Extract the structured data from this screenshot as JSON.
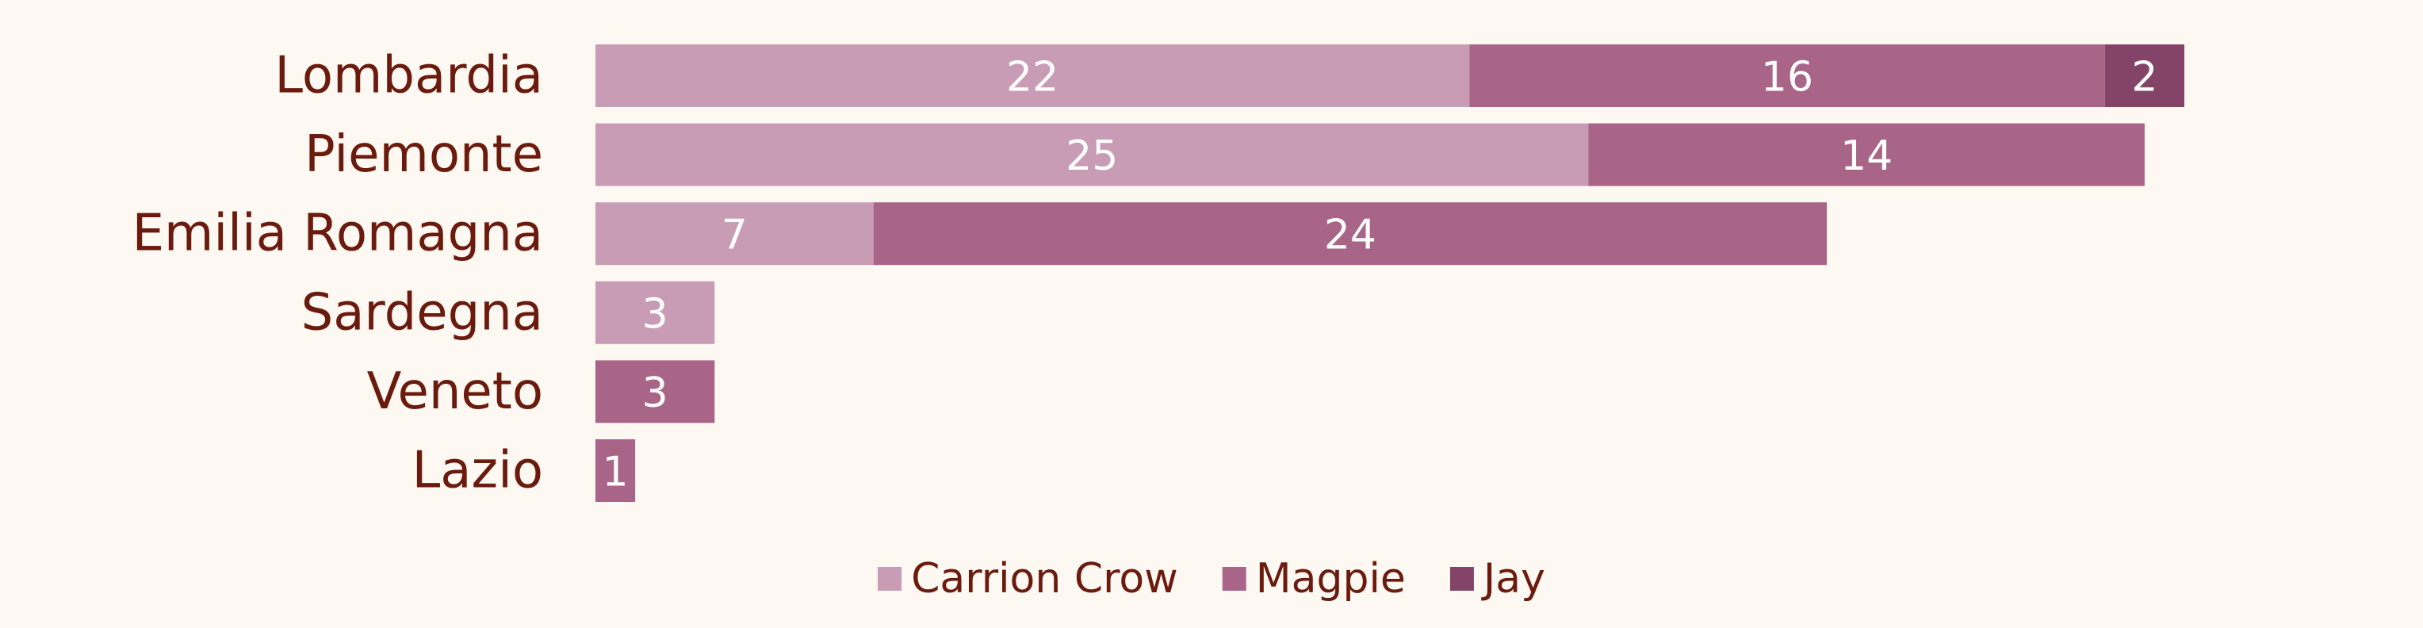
{
  "chart_data": {
    "type": "bar",
    "orientation": "horizontal",
    "stacked": true,
    "categories": [
      "Lombardia",
      "Piemonte",
      "Emilia Romagna",
      "Sardegna",
      "Veneto",
      "Lazio"
    ],
    "series": [
      {
        "name": "Carrion Crow",
        "color": "#c99cb5",
        "values": [
          22,
          25,
          7,
          3,
          0,
          0
        ]
      },
      {
        "name": "Magpie",
        "color": "#a96588",
        "values": [
          16,
          14,
          24,
          0,
          3,
          1
        ]
      },
      {
        "name": "Jay",
        "color": "#844468",
        "values": [
          2,
          0,
          0,
          0,
          0,
          0
        ]
      }
    ],
    "xlim": [
      0,
      40
    ],
    "grid": false,
    "legend_position": "bottom-center"
  },
  "colors": {
    "background": "#fdf8f1",
    "text": "#6b1a0e",
    "value_label": "#ffffff"
  }
}
